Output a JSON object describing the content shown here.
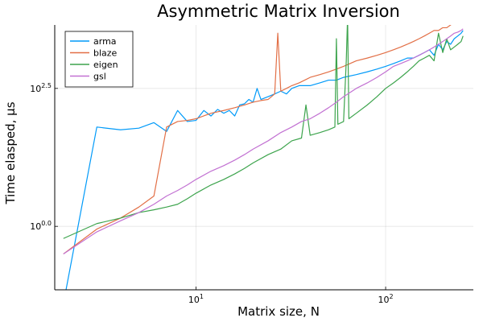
{
  "chart_data": {
    "type": "line",
    "title": "Asymmetric Matrix Inversion",
    "xlabel": "Matrix size, N",
    "ylabel": "Time elasped, μs",
    "xscale": "log10",
    "yscale": "log10",
    "xlim": [
      1.8,
      290
    ],
    "ylim": [
      -1.15,
      3.65
    ],
    "xticks": [
      {
        "value": 10,
        "base": "10",
        "exp": "1"
      },
      {
        "value": 100,
        "base": "10",
        "exp": "2"
      }
    ],
    "yticks": [
      {
        "value": 0.0,
        "base": "10",
        "exp": "0.0"
      },
      {
        "value": 2.5,
        "base": "10",
        "exp": "2.5"
      }
    ],
    "grid": true,
    "legend": "top-left",
    "series": [
      {
        "name": "arma",
        "color": "#009af9",
        "x": [
          2,
          3,
          4,
          5,
          6,
          7,
          8,
          9,
          10,
          11,
          12,
          13,
          14,
          15,
          16,
          17,
          18,
          19,
          20,
          21,
          22,
          24,
          26,
          28,
          30,
          32,
          35,
          40,
          45,
          50,
          55,
          60,
          70,
          80,
          90,
          100,
          110,
          120,
          130,
          140,
          150,
          160,
          170,
          180,
          190,
          200,
          210,
          220,
          230,
          240,
          250,
          256
        ],
        "y": [
          -1.4,
          1.8,
          1.75,
          1.78,
          1.88,
          1.72,
          2.1,
          1.9,
          1.92,
          2.1,
          2.0,
          2.12,
          2.05,
          2.1,
          2.0,
          2.2,
          2.22,
          2.3,
          2.25,
          2.5,
          2.3,
          2.35,
          2.4,
          2.45,
          2.4,
          2.5,
          2.55,
          2.55,
          2.6,
          2.65,
          2.65,
          2.7,
          2.75,
          2.8,
          2.85,
          2.9,
          2.95,
          3.0,
          3.05,
          3.05,
          3.1,
          3.15,
          3.2,
          3.1,
          3.3,
          3.2,
          3.35,
          3.3,
          3.4,
          3.45,
          3.5,
          3.55
        ]
      },
      {
        "name": "blaze",
        "color": "#e26f46",
        "x": [
          2,
          3,
          4,
          5,
          6,
          7,
          8,
          9,
          10,
          12,
          14,
          16,
          18,
          20,
          22,
          24,
          26,
          27,
          28,
          30,
          32,
          35,
          40,
          45,
          50,
          55,
          60,
          70,
          80,
          90,
          100,
          110,
          120,
          130,
          140,
          150,
          160,
          170,
          180,
          190,
          200,
          210,
          220,
          230,
          240,
          250,
          256
        ],
        "y": [
          -0.5,
          -0.05,
          0.15,
          0.35,
          0.55,
          1.8,
          1.9,
          1.92,
          1.95,
          2.05,
          2.1,
          2.15,
          2.2,
          2.25,
          2.28,
          2.3,
          2.4,
          3.5,
          2.45,
          2.5,
          2.55,
          2.6,
          2.7,
          2.75,
          2.8,
          2.85,
          2.9,
          3.0,
          3.05,
          3.1,
          3.15,
          3.2,
          3.25,
          3.3,
          3.35,
          3.4,
          3.45,
          3.5,
          3.55,
          3.55,
          3.6,
          3.6,
          3.65,
          3.7,
          3.75,
          4.0,
          4.8
        ]
      },
      {
        "name": "eigen",
        "color": "#3da44d",
        "x": [
          2,
          3,
          4,
          5,
          6,
          7,
          8,
          9,
          10,
          12,
          14,
          16,
          18,
          20,
          24,
          28,
          32,
          36,
          38,
          40,
          45,
          50,
          54,
          55,
          56,
          60,
          62,
          63,
          64,
          70,
          80,
          90,
          100,
          110,
          120,
          130,
          140,
          150,
          160,
          170,
          180,
          190,
          200,
          210,
          220,
          230,
          240,
          250,
          256
        ],
        "y": [
          -0.22,
          0.05,
          0.15,
          0.25,
          0.3,
          0.35,
          0.4,
          0.5,
          0.6,
          0.75,
          0.85,
          0.95,
          1.05,
          1.15,
          1.3,
          1.4,
          1.55,
          1.6,
          2.2,
          1.65,
          1.7,
          1.75,
          1.8,
          3.4,
          1.85,
          1.9,
          3.0,
          3.8,
          1.95,
          2.05,
          2.2,
          2.35,
          2.5,
          2.6,
          2.7,
          2.8,
          2.9,
          3.0,
          3.05,
          3.1,
          3.0,
          3.5,
          3.15,
          3.4,
          3.2,
          3.25,
          3.3,
          3.35,
          3.45
        ]
      },
      {
        "name": "gsl",
        "color": "#c271d2",
        "x": [
          2,
          3,
          4,
          5,
          6,
          7,
          8,
          9,
          10,
          12,
          14,
          16,
          18,
          20,
          24,
          28,
          32,
          36,
          40,
          45,
          50,
          55,
          60,
          70,
          80,
          90,
          100,
          110,
          120,
          130,
          140,
          150,
          160,
          170,
          180,
          190,
          200,
          210,
          220,
          230,
          240,
          250,
          256
        ],
        "y": [
          -0.5,
          -0.1,
          0.1,
          0.25,
          0.4,
          0.55,
          0.65,
          0.75,
          0.85,
          1.0,
          1.1,
          1.2,
          1.3,
          1.4,
          1.55,
          1.7,
          1.8,
          1.9,
          1.95,
          2.05,
          2.15,
          2.25,
          2.35,
          2.5,
          2.6,
          2.7,
          2.8,
          2.9,
          2.95,
          3.0,
          3.05,
          3.1,
          3.15,
          3.2,
          3.25,
          3.3,
          3.35,
          3.4,
          3.45,
          3.5,
          3.52,
          3.55,
          3.58
        ]
      }
    ]
  }
}
